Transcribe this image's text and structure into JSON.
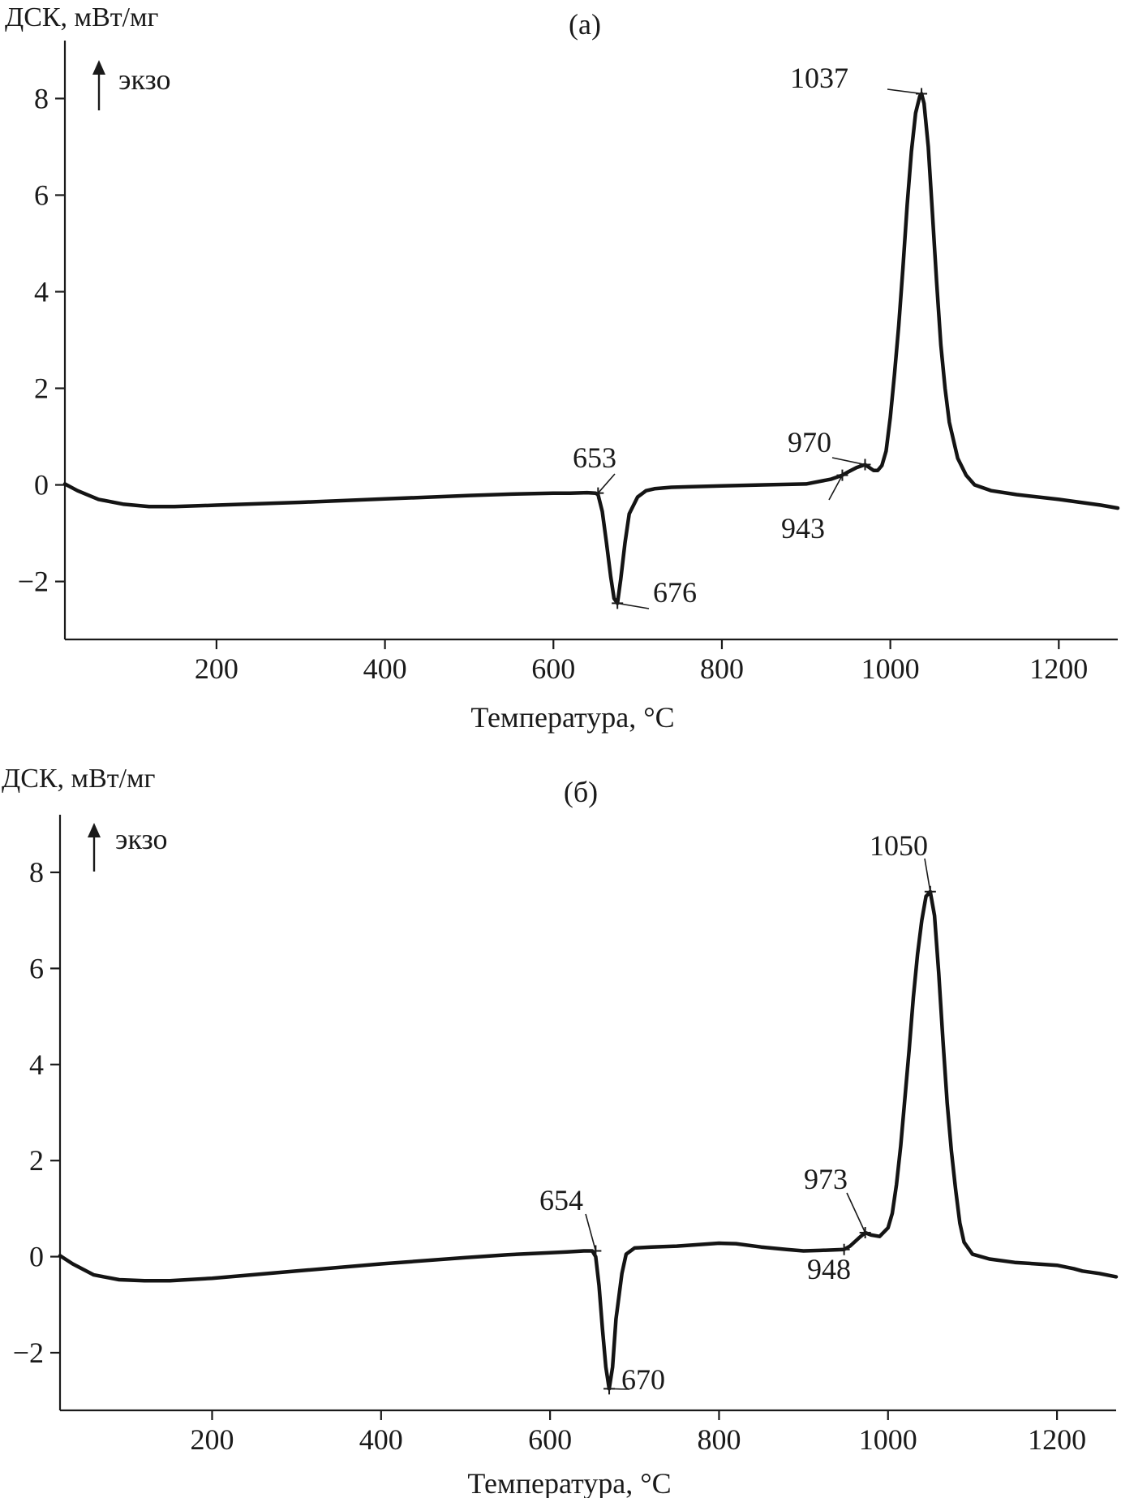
{
  "chart_data": [
    {
      "type": "line",
      "title": "(а)",
      "ylabel": "ДСК, мВт/мг",
      "xlabel": "Температура, °С",
      "exo_label": "экзо",
      "xlim": [
        20,
        1270
      ],
      "ylim": [
        -3.2,
        9.2
      ],
      "xticks": [
        200,
        400,
        600,
        800,
        1000,
        1200
      ],
      "yticks": [
        8,
        6,
        4,
        2,
        0,
        -2
      ],
      "ytick_labels": [
        "8",
        "6",
        "4",
        "2",
        "0",
        "−2"
      ],
      "grid": false,
      "series": [
        {
          "x": [
            20,
            35,
            60,
            90,
            120,
            150,
            200,
            300,
            400,
            500,
            550,
            600,
            620,
            640,
            650,
            653,
            658,
            663,
            668,
            672,
            676,
            680,
            685,
            690,
            700,
            710,
            720,
            740,
            760,
            800,
            850,
            900,
            930,
            943,
            950,
            960,
            970,
            980,
            985,
            990,
            995,
            1000,
            1005,
            1010,
            1015,
            1020,
            1025,
            1030,
            1035,
            1037,
            1040,
            1045,
            1050,
            1055,
            1060,
            1065,
            1070,
            1080,
            1090,
            1100,
            1120,
            1150,
            1200,
            1250,
            1270
          ],
          "y": [
            0.02,
            -0.12,
            -0.3,
            -0.4,
            -0.45,
            -0.45,
            -0.42,
            -0.36,
            -0.29,
            -0.22,
            -0.19,
            -0.17,
            -0.17,
            -0.16,
            -0.17,
            -0.2,
            -0.55,
            -1.2,
            -1.9,
            -2.35,
            -2.45,
            -1.95,
            -1.2,
            -0.6,
            -0.25,
            -0.12,
            -0.08,
            -0.05,
            -0.04,
            -0.02,
            0.0,
            0.02,
            0.12,
            0.2,
            0.27,
            0.36,
            0.42,
            0.3,
            0.3,
            0.4,
            0.7,
            1.4,
            2.3,
            3.3,
            4.5,
            5.8,
            6.9,
            7.7,
            8.05,
            8.1,
            7.9,
            7.0,
            5.6,
            4.2,
            2.9,
            2.0,
            1.3,
            0.55,
            0.2,
            0.0,
            -0.12,
            -0.2,
            -0.3,
            -0.42,
            -0.48
          ]
        }
      ],
      "annotations": [
        {
          "text": "1037",
          "x": 1037,
          "y": 8.1
        },
        {
          "text": "653",
          "x": 653,
          "y": -0.17
        },
        {
          "text": "676",
          "x": 676,
          "y": -2.45
        },
        {
          "text": "970",
          "x": 970,
          "y": 0.42
        },
        {
          "text": "943",
          "x": 943,
          "y": 0.2
        }
      ]
    },
    {
      "type": "line",
      "title": "(б)",
      "ylabel": "ДСК, мВт/мг",
      "xlabel": "Температура, °С",
      "exo_label": "экзо",
      "xlim": [
        20,
        1270
      ],
      "ylim": [
        -3.2,
        9.2
      ],
      "xticks": [
        200,
        400,
        600,
        800,
        1000,
        1200
      ],
      "yticks": [
        8,
        6,
        4,
        2,
        0,
        -2
      ],
      "ytick_labels": [
        "8",
        "6",
        "4",
        "2",
        "0",
        "−2"
      ],
      "grid": false,
      "series": [
        {
          "x": [
            20,
            35,
            60,
            90,
            120,
            150,
            200,
            300,
            400,
            500,
            550,
            600,
            620,
            640,
            650,
            654,
            658,
            662,
            666,
            670,
            674,
            678,
            685,
            690,
            700,
            720,
            750,
            800,
            820,
            850,
            880,
            900,
            920,
            948,
            955,
            965,
            973,
            980,
            990,
            1000,
            1005,
            1010,
            1015,
            1020,
            1025,
            1030,
            1035,
            1040,
            1045,
            1050,
            1055,
            1060,
            1065,
            1070,
            1075,
            1080,
            1085,
            1090,
            1100,
            1120,
            1150,
            1200,
            1220,
            1230,
            1250,
            1270
          ],
          "y": [
            0.02,
            -0.15,
            -0.38,
            -0.48,
            -0.5,
            -0.5,
            -0.45,
            -0.3,
            -0.15,
            -0.02,
            0.04,
            0.08,
            0.1,
            0.12,
            0.12,
            0.0,
            -0.6,
            -1.5,
            -2.3,
            -2.75,
            -2.3,
            -1.3,
            -0.35,
            0.05,
            0.18,
            0.2,
            0.22,
            0.28,
            0.27,
            0.2,
            0.15,
            0.12,
            0.13,
            0.15,
            0.22,
            0.38,
            0.5,
            0.45,
            0.42,
            0.6,
            0.9,
            1.5,
            2.3,
            3.3,
            4.3,
            5.4,
            6.3,
            7.0,
            7.5,
            7.6,
            7.1,
            5.9,
            4.5,
            3.2,
            2.2,
            1.4,
            0.7,
            0.3,
            0.05,
            -0.05,
            -0.12,
            -0.18,
            -0.25,
            -0.3,
            -0.35,
            -0.42
          ]
        }
      ],
      "annotations": [
        {
          "text": "1050",
          "x": 1050,
          "y": 7.6
        },
        {
          "text": "654",
          "x": 654,
          "y": 0.12
        },
        {
          "text": "670",
          "x": 670,
          "y": -2.75
        },
        {
          "text": "973",
          "x": 973,
          "y": 0.5
        },
        {
          "text": "948",
          "x": 948,
          "y": 0.15
        }
      ]
    }
  ]
}
